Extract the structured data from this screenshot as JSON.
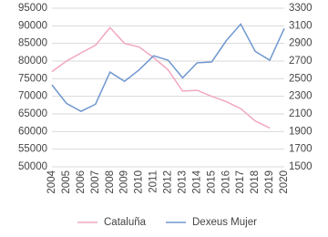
{
  "chart_data": {
    "type": "line",
    "categories": [
      "2004",
      "2005",
      "2006",
      "2007",
      "2008",
      "2009",
      "2010",
      "2011",
      "2012",
      "2013",
      "2014",
      "2015",
      "2016",
      "2017",
      "2018",
      "2019",
      "2020"
    ],
    "series": [
      {
        "name": "Cataluña",
        "color": "#f2a7c0",
        "values": [
          77000,
          80000,
          82300,
          84500,
          89500,
          85000,
          84000,
          81000,
          77500,
          71500,
          71700,
          70000,
          68500,
          66500,
          63000,
          61000,
          null
        ]
      },
      {
        "name": "Dexeus Mujer",
        "color": "#6f97cf",
        "axis": "y2",
        "values": [
          2430,
          2220,
          2130,
          2210,
          2575,
          2470,
          2600,
          2760,
          2710,
          2510,
          2680,
          2690,
          2930,
          3120,
          2810,
          2710,
          3070
        ]
      }
    ],
    "ylim": [
      50000,
      95000
    ],
    "yticks": [
      50000,
      55000,
      60000,
      65000,
      70000,
      75000,
      80000,
      85000,
      90000,
      95000
    ],
    "y2lim": [
      1500,
      3300
    ],
    "y2ticks": [
      1500,
      1700,
      1900,
      2100,
      2300,
      2500,
      2700,
      2900,
      3100,
      3300
    ],
    "grid": true,
    "legend": "bottom"
  }
}
